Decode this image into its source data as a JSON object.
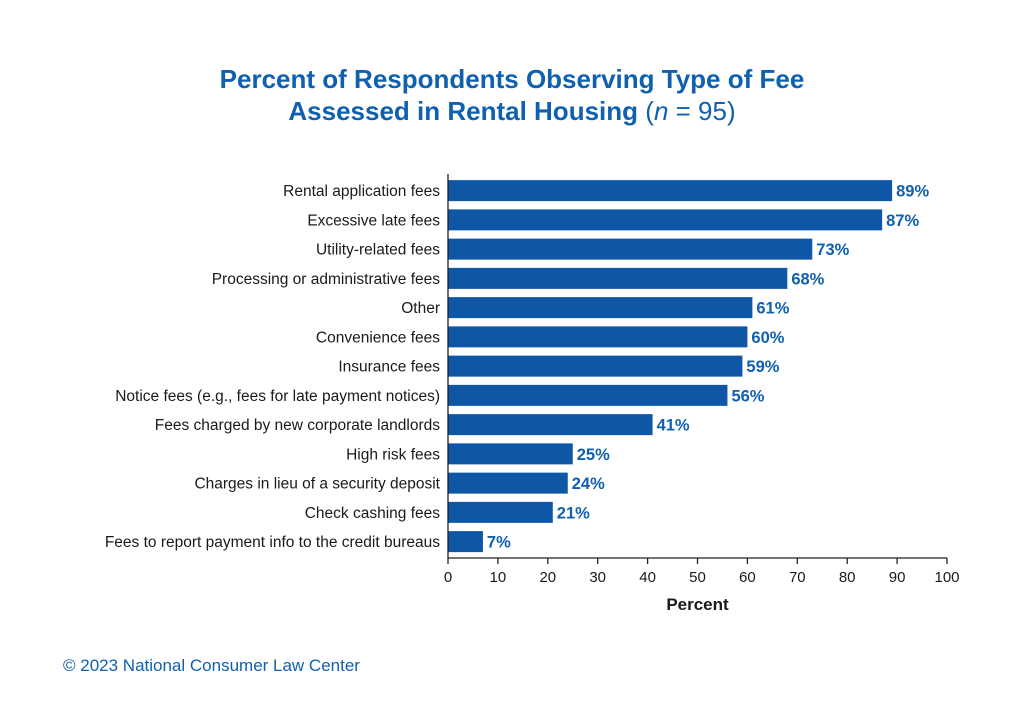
{
  "title": {
    "line1": "Percent of Respondents Observing Type of Fee",
    "line2_main": "Assessed in Rental Housing",
    "n_open": "(",
    "n_var": "n",
    "n_rest": " = 95)"
  },
  "footer": "© 2023 National Consumer Law Center",
  "colors": {
    "bar": "#0d57a6",
    "text_accent": "#1060b0",
    "axis": "#222222"
  },
  "chart_data": {
    "type": "bar",
    "orientation": "horizontal",
    "categories": [
      "Rental application fees",
      "Excessive late fees",
      "Utility-related fees",
      "Processing or administrative fees",
      "Other",
      "Convenience fees",
      "Insurance fees",
      "Notice fees (e.g., fees for late payment notices)",
      "Fees charged by new corporate landlords",
      "High risk fees",
      "Charges in lieu of a security deposit",
      "Check cashing fees",
      "Fees to report payment info to the credit bureaus"
    ],
    "values": [
      89,
      87,
      73,
      68,
      61,
      60,
      59,
      56,
      41,
      25,
      24,
      21,
      7
    ],
    "data_labels": [
      "89%",
      "87%",
      "73%",
      "68%",
      "61%",
      "60%",
      "59%",
      "56%",
      "41%",
      "25%",
      "24%",
      "21%",
      "7%"
    ],
    "xlabel": "Percent",
    "ylabel": "",
    "xlim": [
      0,
      100
    ],
    "xticks": [
      0,
      10,
      20,
      30,
      40,
      50,
      60,
      70,
      80,
      90,
      100
    ],
    "grid": false,
    "legend": "none"
  }
}
